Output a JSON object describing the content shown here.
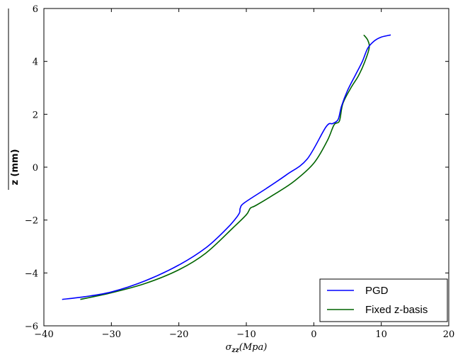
{
  "chart_data": {
    "type": "line",
    "title": "",
    "xlabel": "σ_zz (Mpa)",
    "xlabel_parts": {
      "sigma": "σ",
      "sub": "zz",
      "unit": "(Mpa)"
    },
    "ylabel": "z (mm)",
    "xlim": [
      -40,
      20
    ],
    "ylim": [
      -6,
      6
    ],
    "xticks": [
      -40,
      -30,
      -20,
      -10,
      0,
      10,
      20
    ],
    "yticks": [
      -6,
      -4,
      -2,
      0,
      2,
      4,
      6
    ],
    "xtick_labels": [
      "−40",
      "−30",
      "−20",
      "−10",
      "0",
      "10",
      "20"
    ],
    "ytick_labels": [
      "−6",
      "−4",
      "−2",
      "0",
      "2",
      "4",
      "6"
    ],
    "grid": false,
    "legend": {
      "placement": "bottom-right"
    },
    "series": [
      {
        "name": "PGD",
        "color": "#0000ff",
        "points": [
          [
            -37.3,
            -5.0
          ],
          [
            -34.0,
            -4.9
          ],
          [
            -30.0,
            -4.72
          ],
          [
            -25.0,
            -4.3
          ],
          [
            -20.0,
            -3.7
          ],
          [
            -16.0,
            -3.05
          ],
          [
            -13.0,
            -2.35
          ],
          [
            -11.6,
            -1.95
          ],
          [
            -11.0,
            -1.72
          ],
          [
            -10.9,
            -1.55
          ],
          [
            -10.3,
            -1.35
          ],
          [
            -7.0,
            -0.8
          ],
          [
            -4.0,
            -0.28
          ],
          [
            -1.0,
            0.3
          ],
          [
            1.8,
            1.52
          ],
          [
            2.8,
            1.65
          ],
          [
            3.6,
            1.8
          ],
          [
            4.1,
            2.3
          ],
          [
            5.0,
            2.9
          ],
          [
            6.2,
            3.5
          ],
          [
            7.2,
            4.0
          ],
          [
            8.0,
            4.5
          ],
          [
            9.0,
            4.78
          ],
          [
            10.0,
            4.92
          ],
          [
            11.4,
            5.0
          ]
        ]
      },
      {
        "name": "Fixed z-basis",
        "color": "#006400",
        "points": [
          [
            -34.6,
            -5.0
          ],
          [
            -30.0,
            -4.75
          ],
          [
            -25.0,
            -4.4
          ],
          [
            -20.0,
            -3.88
          ],
          [
            -16.0,
            -3.25
          ],
          [
            -12.0,
            -2.3
          ],
          [
            -10.0,
            -1.8
          ],
          [
            -9.4,
            -1.55
          ],
          [
            -8.6,
            -1.45
          ],
          [
            -6.0,
            -1.05
          ],
          [
            -3.0,
            -0.55
          ],
          [
            0.0,
            0.15
          ],
          [
            2.0,
            1.0
          ],
          [
            3.0,
            1.6
          ],
          [
            3.8,
            1.75
          ],
          [
            4.3,
            2.4
          ],
          [
            5.5,
            3.0
          ],
          [
            6.6,
            3.45
          ],
          [
            7.5,
            3.95
          ],
          [
            8.2,
            4.5
          ],
          [
            8.0,
            4.8
          ],
          [
            7.4,
            5.0
          ]
        ]
      }
    ]
  }
}
